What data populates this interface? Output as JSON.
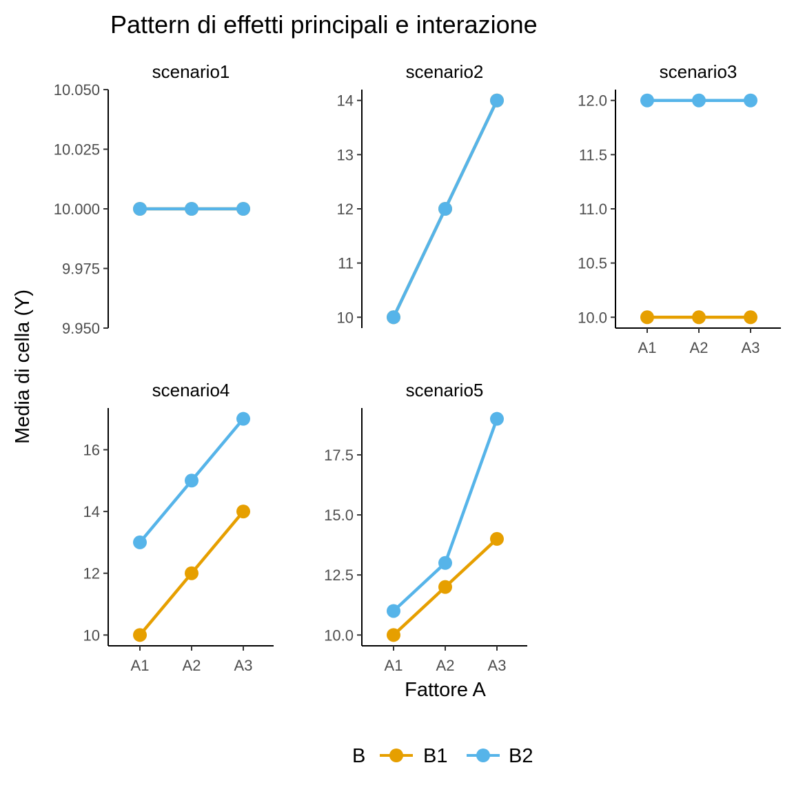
{
  "chart_data": {
    "type": "line",
    "title": "Pattern di effetti principali e interazione",
    "xlabel": "Fattore A",
    "ylabel": "Media di cella (Y)",
    "categories": [
      "A1",
      "A2",
      "A3"
    ],
    "legend": {
      "title": "B",
      "placement": "bottom",
      "entries": [
        {
          "name": "B1",
          "color": "#E69F00"
        },
        {
          "name": "B2",
          "color": "#56B4E9"
        }
      ]
    },
    "grid": false,
    "facets": [
      {
        "label": "scenario1",
        "ylim": [
          9.95,
          10.05
        ],
        "yticks": [
          9.95,
          9.975,
          10.0,
          10.025,
          10.05
        ],
        "ytick_labels": [
          "9.950",
          "9.975",
          "10.000",
          "10.025",
          "10.050"
        ],
        "show_x_axis": false,
        "series": [
          {
            "name": "B1",
            "values": [
              10,
              10,
              10
            ]
          },
          {
            "name": "B2",
            "values": [
              10,
              10,
              10
            ]
          }
        ]
      },
      {
        "label": "scenario2",
        "ylim": [
          9.8,
          14.2
        ],
        "yticks": [
          10,
          11,
          12,
          13,
          14
        ],
        "ytick_labels": [
          "10",
          "11",
          "12",
          "13",
          "14"
        ],
        "show_x_axis": false,
        "series": [
          {
            "name": "B1",
            "values": [
              10,
              12,
              14
            ]
          },
          {
            "name": "B2",
            "values": [
              10,
              12,
              14
            ]
          }
        ]
      },
      {
        "label": "scenario3",
        "ylim": [
          9.9,
          12.1
        ],
        "yticks": [
          10.0,
          10.5,
          11.0,
          11.5,
          12.0
        ],
        "ytick_labels": [
          "10.0",
          "10.5",
          "11.0",
          "11.5",
          "12.0"
        ],
        "show_x_axis": true,
        "series": [
          {
            "name": "B1",
            "values": [
              10,
              10,
              10
            ]
          },
          {
            "name": "B2",
            "values": [
              12,
              12,
              12
            ]
          }
        ]
      },
      {
        "label": "scenario4",
        "ylim": [
          9.65,
          17.35
        ],
        "yticks": [
          10,
          12,
          14,
          16
        ],
        "ytick_labels": [
          "10",
          "12",
          "14",
          "16"
        ],
        "show_x_axis": true,
        "series": [
          {
            "name": "B1",
            "values": [
              10,
              12,
              14
            ]
          },
          {
            "name": "B2",
            "values": [
              13,
              15,
              17
            ]
          }
        ]
      },
      {
        "label": "scenario5",
        "ylim": [
          9.55,
          19.45
        ],
        "yticks": [
          10.0,
          12.5,
          15.0,
          17.5
        ],
        "ytick_labels": [
          "10.0",
          "12.5",
          "15.0",
          "17.5"
        ],
        "show_x_axis": true,
        "series": [
          {
            "name": "B1",
            "values": [
              10,
              12,
              14
            ]
          },
          {
            "name": "B2",
            "values": [
              11,
              13,
              19
            ]
          }
        ]
      }
    ]
  }
}
